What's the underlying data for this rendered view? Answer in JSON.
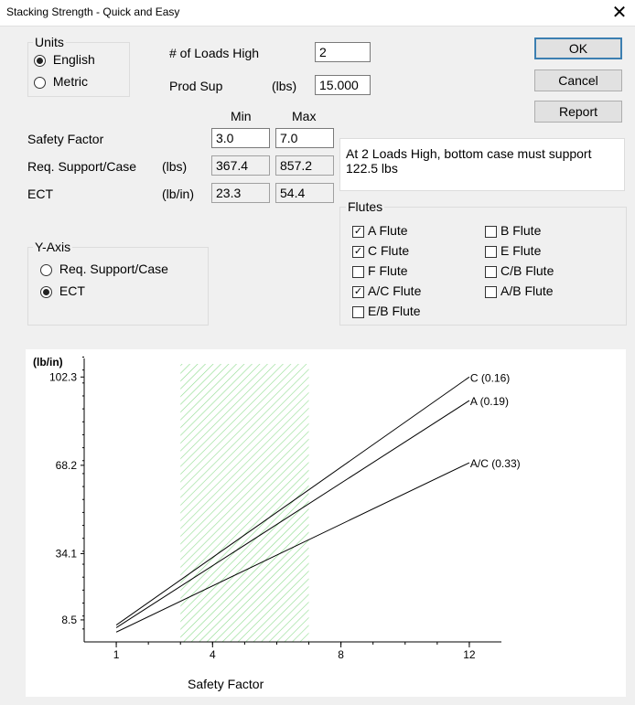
{
  "window": {
    "title": "Stacking Strength - Quick and Easy",
    "close_glyph": "✕"
  },
  "units": {
    "label": "Units",
    "english": "English",
    "metric": "Metric",
    "selected": "English"
  },
  "loads": {
    "label": "# of Loads High",
    "value": "2"
  },
  "prod_sup": {
    "label": "Prod Sup",
    "unit": "(lbs)",
    "value": "15.000"
  },
  "table": {
    "min_header": "Min",
    "max_header": "Max",
    "rows": [
      {
        "label": "Safety Factor",
        "unit": "",
        "min": "3.0",
        "max": "7.0",
        "editable": true
      },
      {
        "label": "Req. Support/Case",
        "unit": "(lbs)",
        "min": "367.4",
        "max": "857.2",
        "editable": false
      },
      {
        "label": "ECT",
        "unit": "(lb/in)",
        "min": "23.3",
        "max": "54.4",
        "editable": false
      }
    ]
  },
  "message": "At 2 Loads High, bottom case must support 122.5 lbs",
  "buttons": {
    "ok": "OK",
    "cancel": "Cancel",
    "report": "Report"
  },
  "yaxis_group": {
    "label": "Y-Axis",
    "option1": "Req. Support/Case",
    "option2": "ECT",
    "selected": "ECT"
  },
  "flutes": {
    "label": "Flutes",
    "items": [
      {
        "name": "A Flute",
        "checked": true
      },
      {
        "name": "B Flute",
        "checked": false
      },
      {
        "name": "C Flute",
        "checked": true
      },
      {
        "name": "E Flute",
        "checked": false
      },
      {
        "name": "F Flute",
        "checked": false
      },
      {
        "name": "C/B Flute",
        "checked": false
      },
      {
        "name": "A/C Flute",
        "checked": true
      },
      {
        "name": "A/B Flute",
        "checked": false
      },
      {
        "name": "E/B Flute",
        "checked": false
      }
    ]
  },
  "chart_data": {
    "type": "line",
    "ylabel": "(lb/in)",
    "xlabel": "Safety Factor",
    "xlim": [
      0,
      13
    ],
    "ylim": [
      0,
      113
    ],
    "x_ticks": [
      1,
      4,
      8,
      12
    ],
    "y_ticks": [
      8.5,
      34.1,
      68.2,
      102.3
    ],
    "shaded_range": [
      3.0,
      7.0
    ],
    "shade_color": "#8fdc8f",
    "series": [
      {
        "name": "C (0.16)",
        "x": [
          1,
          12
        ],
        "y": [
          6.5,
          102.3
        ]
      },
      {
        "name": "A (0.19)",
        "x": [
          1,
          12
        ],
        "y": [
          5.5,
          93.2
        ]
      },
      {
        "name": "A/C (0.33)",
        "x": [
          1,
          12
        ],
        "y": [
          3.8,
          69.2
        ]
      }
    ]
  }
}
